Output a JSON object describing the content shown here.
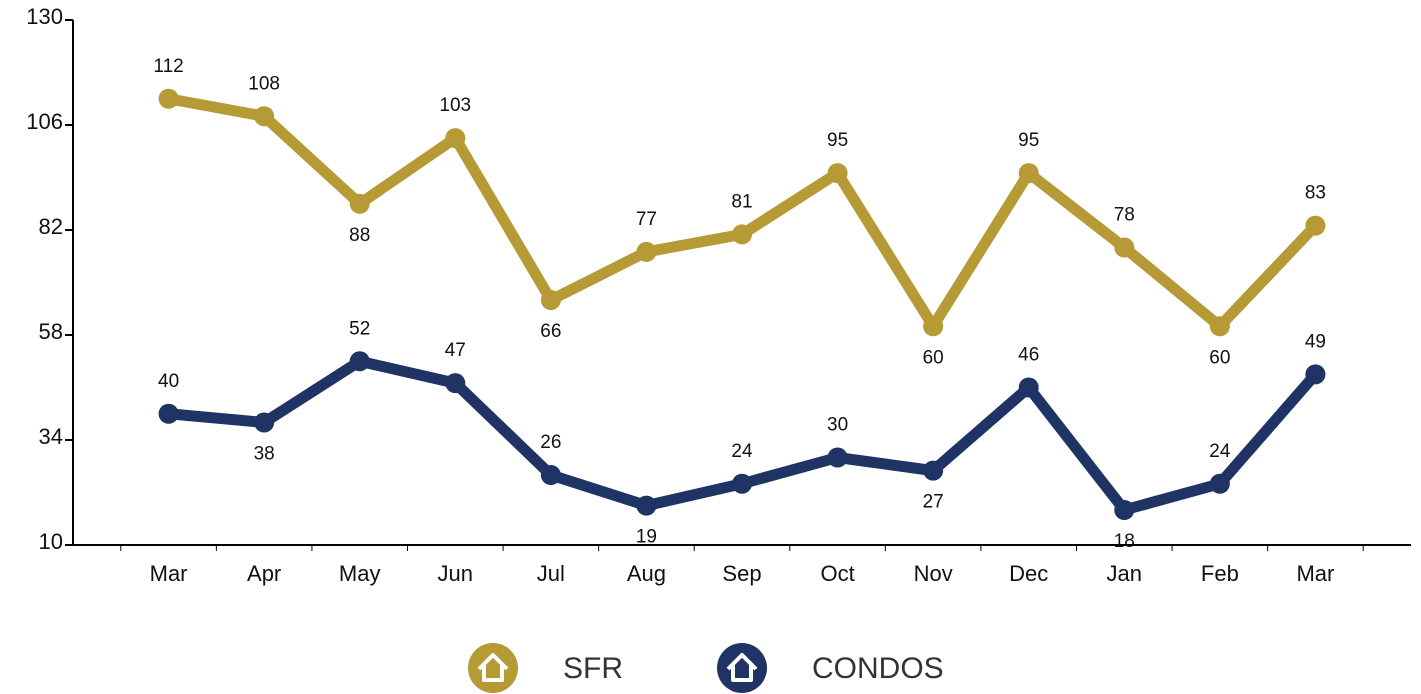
{
  "chart_data": {
    "type": "line",
    "categories": [
      "Mar",
      "Apr",
      "May",
      "Jun",
      "Jul",
      "Aug",
      "Sep",
      "Oct",
      "Nov",
      "Dec",
      "Jan",
      "Feb",
      "Mar"
    ],
    "series": [
      {
        "name": "SFR",
        "color": "#b59a35",
        "values": [
          112,
          108,
          88,
          103,
          66,
          77,
          81,
          95,
          60,
          95,
          78,
          60,
          83
        ]
      },
      {
        "name": "CONDOS",
        "color": "#1f3464",
        "values": [
          40,
          38,
          52,
          47,
          26,
          19,
          24,
          30,
          27,
          46,
          18,
          24,
          49
        ]
      }
    ],
    "ylim": [
      10,
      130
    ],
    "yticks": [
      10,
      34,
      58,
      82,
      106,
      130
    ]
  }
}
